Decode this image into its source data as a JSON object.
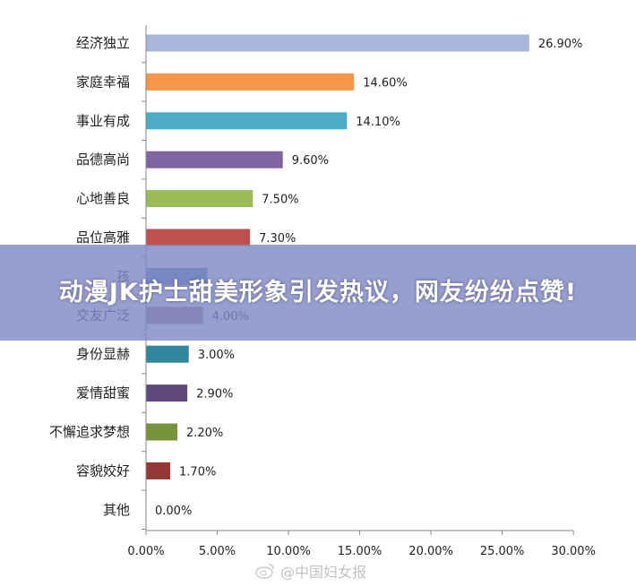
{
  "headline": "动漫JK护士甜美形象引发热议，网友纷纷点赞!",
  "watermark": "@中国妇女报",
  "chart_data": {
    "type": "bar",
    "orientation": "horizontal",
    "categories": [
      "经济独立",
      "家庭幸福",
      "事业有成",
      "品德高尚",
      "心地善良",
      "品位高雅",
      "孩",
      "交友广泛",
      "身份显赫",
      "爱情甜蜜",
      "不懈追求梦想",
      "容貌姣好",
      "其他"
    ],
    "values": [
      26.9,
      14.6,
      14.1,
      9.6,
      7.5,
      7.3,
      4.3,
      4.0,
      3.0,
      2.9,
      2.2,
      1.7,
      0.0
    ],
    "value_labels": [
      "26.90%",
      "14.60%",
      "14.10%",
      "9.60%",
      "7.50%",
      "7.30%",
      "",
      "4.00%",
      "3.00%",
      "2.90%",
      "2.20%",
      "1.70%",
      "0.00%"
    ],
    "colors": [
      "#A7B6D9",
      "#F79646",
      "#4BACC6",
      "#8064A2",
      "#9BBB59",
      "#C0504D",
      "#4F81BD",
      "#8E7C8E",
      "#31859C",
      "#604A7B",
      "#77933C",
      "#953735",
      "#4F81BD"
    ],
    "xticks": [
      "0.00%",
      "5.00%",
      "10.00%",
      "15.00%",
      "20.00%",
      "25.00%",
      "30.00%"
    ],
    "xlim": [
      0,
      30
    ],
    "grid": false,
    "title": "",
    "xlabel": "",
    "ylabel": ""
  }
}
